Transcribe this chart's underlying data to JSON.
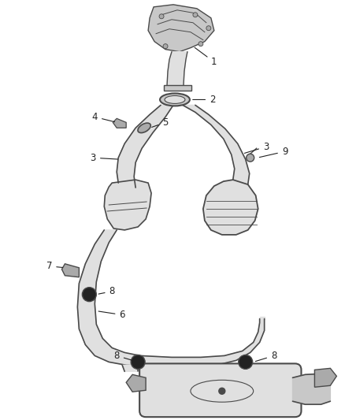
{
  "background_color": "#ffffff",
  "line_color": "#4a4a4a",
  "fill_light": "#e0e0e0",
  "fill_mid": "#c8c8c8",
  "fill_dark": "#aaaaaa",
  "fill_black": "#222222",
  "label_fontsize": 8.5,
  "fig_width": 4.38,
  "fig_height": 5.33,
  "dpi": 100
}
